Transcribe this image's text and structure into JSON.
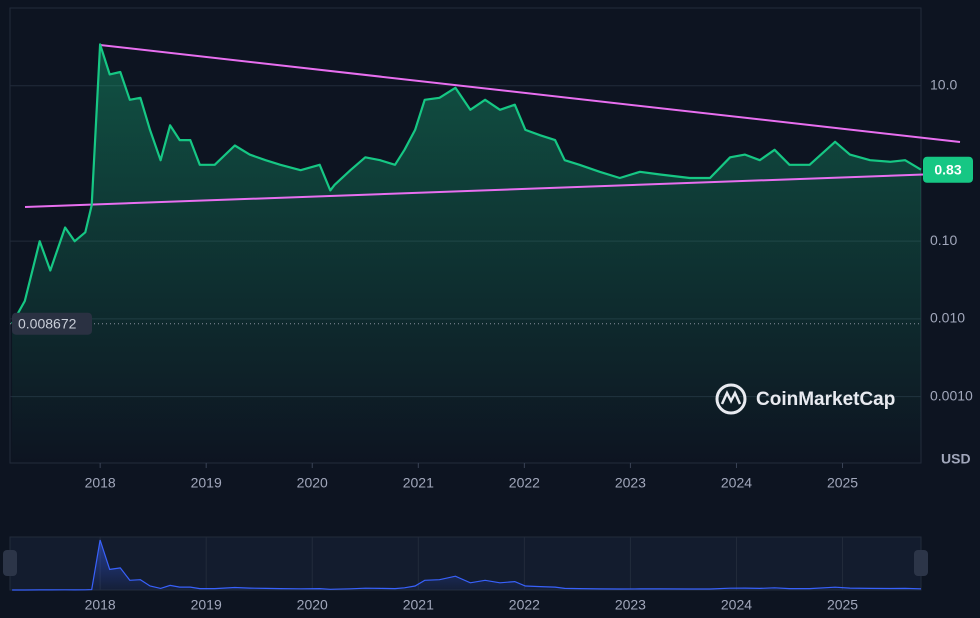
{
  "chart_data": {
    "type": "line",
    "log_scale": true,
    "grid": true,
    "color": "#16c784",
    "currency": "USD",
    "watermark": "CoinMarketCap",
    "x": [
      2017.17,
      2017.29,
      2017.43,
      2017.53,
      2017.67,
      2017.76,
      2017.86,
      2017.92,
      2018.0,
      2018.09,
      2018.19,
      2018.28,
      2018.38,
      2018.47,
      2018.57,
      2018.66,
      2018.75,
      2018.85,
      2018.94,
      2019.08,
      2019.27,
      2019.41,
      2019.56,
      2019.7,
      2019.89,
      2020.07,
      2020.17,
      2020.21,
      2020.36,
      2020.5,
      2020.64,
      2020.78,
      2020.87,
      2020.97,
      2021.06,
      2021.2,
      2021.35,
      2021.49,
      2021.63,
      2021.77,
      2021.91,
      2022.01,
      2022.15,
      2022.29,
      2022.38,
      2022.52,
      2022.71,
      2022.9,
      2023.09,
      2023.28,
      2023.56,
      2023.75,
      2023.94,
      2024.08,
      2024.22,
      2024.36,
      2024.5,
      2024.69,
      2024.93,
      2025.07,
      2025.26,
      2025.45,
      2025.59,
      2025.74
    ],
    "values": [
      0.008672,
      0.017,
      0.1,
      0.042,
      0.15,
      0.1,
      0.13,
      0.29,
      34,
      14,
      15,
      6.6,
      7.0,
      2.7,
      1.1,
      3.1,
      2.0,
      2.0,
      0.96,
      0.96,
      1.7,
      1.3,
      1.1,
      0.96,
      0.82,
      0.96,
      0.45,
      0.53,
      0.82,
      1.2,
      1.1,
      0.96,
      1.5,
      2.7,
      6.6,
      7.0,
      9.4,
      4.9,
      6.6,
      4.9,
      5.7,
      2.7,
      2.3,
      2.0,
      1.1,
      0.96,
      0.78,
      0.65,
      0.78,
      0.72,
      0.65,
      0.65,
      1.2,
      1.3,
      1.1,
      1.5,
      0.96,
      0.96,
      1.9,
      1.3,
      1.1,
      1.05,
      1.1,
      0.83
    ],
    "xlim": [
      2017.15,
      2025.74
    ],
    "xticks": [
      2018,
      2019,
      2020,
      2021,
      2022,
      2023,
      2024,
      2025
    ],
    "ylim": [
      0.00014,
      100
    ],
    "yticks": [
      {
        "value": 0.001,
        "label": "0.0010"
      },
      {
        "value": 0.01,
        "label": "0.010"
      },
      {
        "value": 0.1,
        "label": "0.10"
      },
      {
        "value": 10,
        "label": "10.0"
      }
    ]
  }
}
